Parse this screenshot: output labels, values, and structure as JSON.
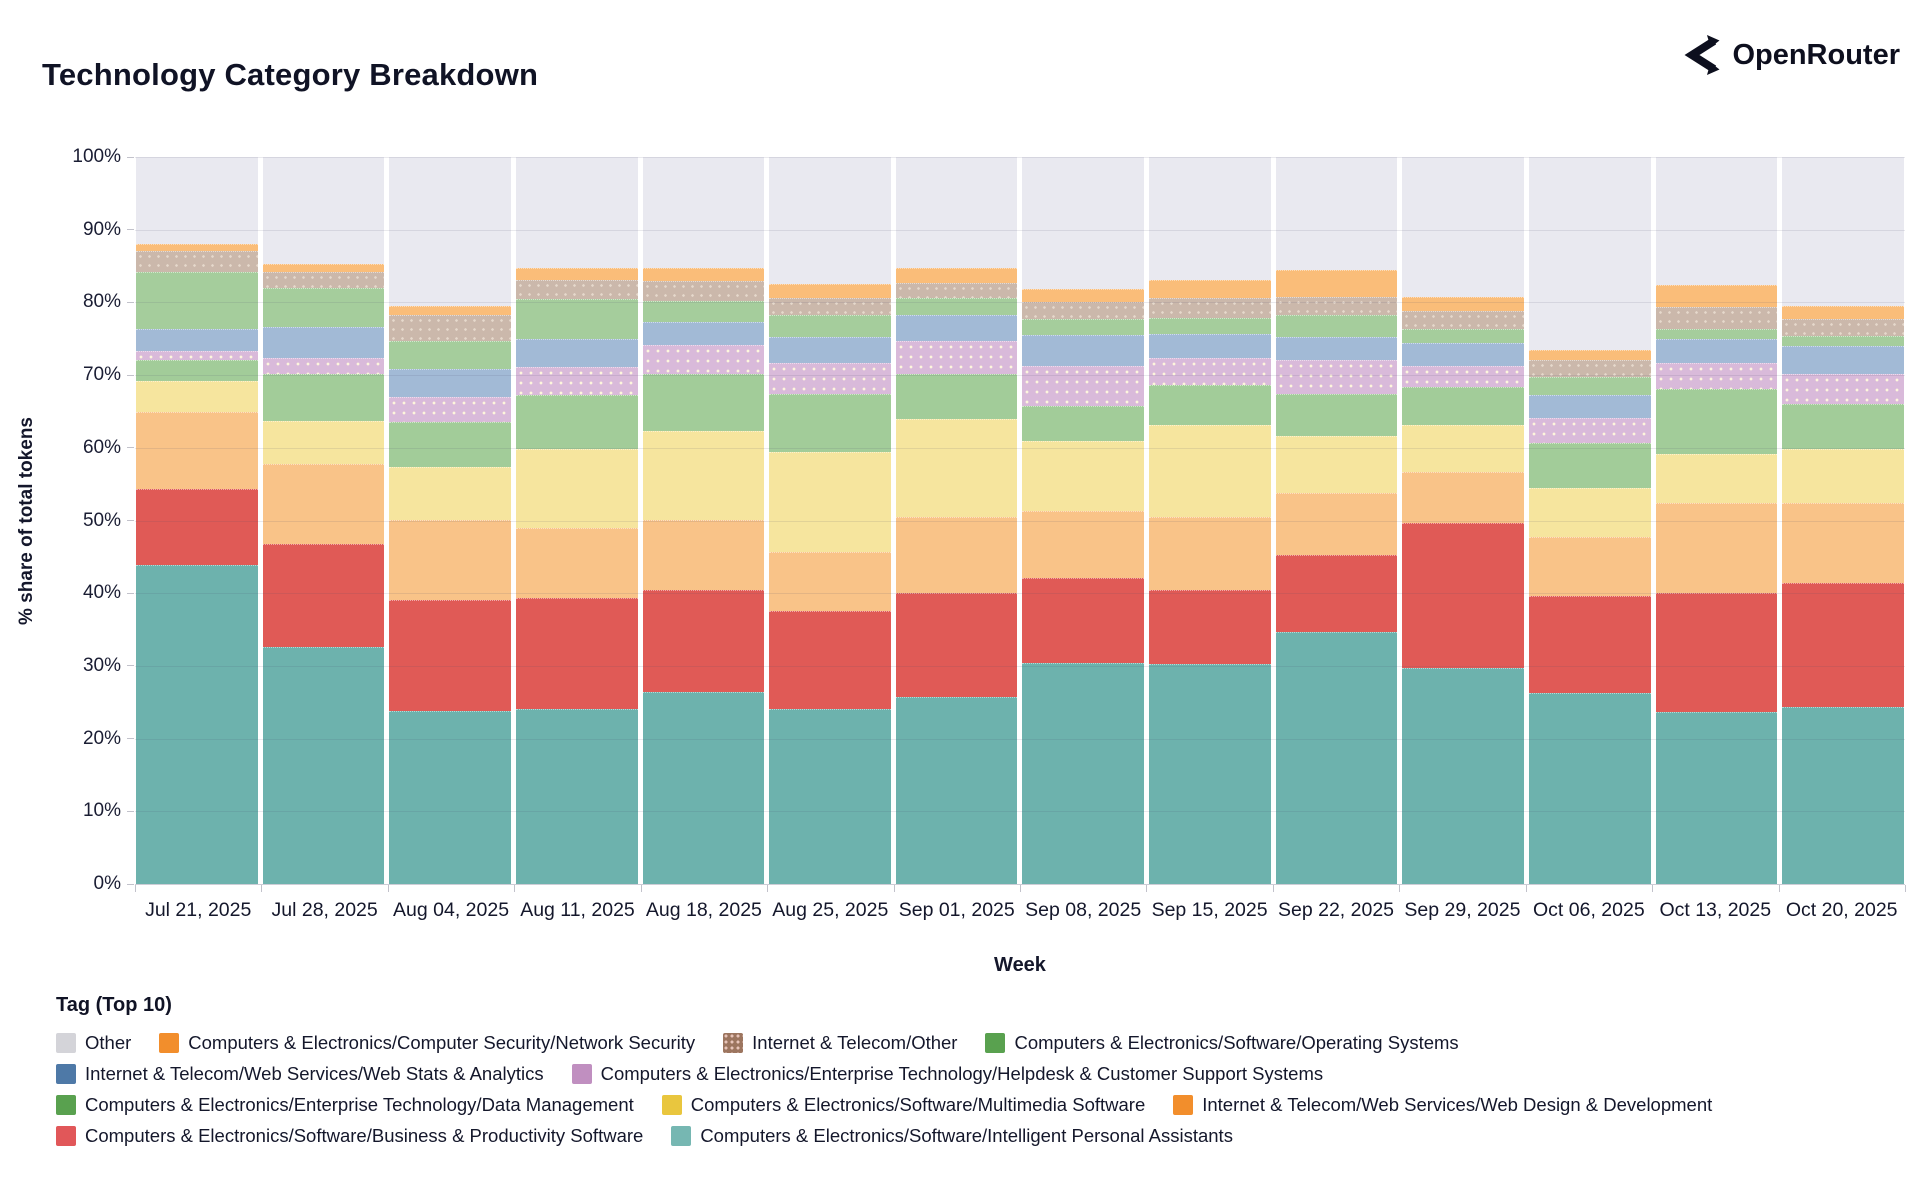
{
  "header": {
    "title": "Technology Category Breakdown",
    "brand": "OpenRouter"
  },
  "chart_data": {
    "type": "bar",
    "stacked": true,
    "stack_unit": "percent_of_total",
    "title": "Technology Category Breakdown",
    "xlabel": "Week",
    "ylabel": "% share of total tokens",
    "ylim": [
      0,
      100
    ],
    "grid": true,
    "legend_title": "Tag (Top 10)",
    "legend_position": "bottom",
    "ytick_labels": [
      "0%",
      "10%",
      "20%",
      "30%",
      "40%",
      "50%",
      "60%",
      "70%",
      "80%",
      "90%",
      "100%"
    ],
    "categories": [
      "Jul 21, 2025",
      "Jul 28, 2025",
      "Aug 04, 2025",
      "Aug 11, 2025",
      "Aug 18, 2025",
      "Aug 25, 2025",
      "Sep 01, 2025",
      "Sep 08, 2025",
      "Sep 15, 2025",
      "Sep 22, 2025",
      "Sep 29, 2025",
      "Oct 06, 2025",
      "Oct 13, 2025",
      "Oct 20, 2025"
    ],
    "series": [
      {
        "key": "ipa",
        "label": "Computers & Electronics/Software/Intelligent Personal Assistants",
        "bar_color": "#6db2ad",
        "legend_color": "#76b7b2",
        "pattern": false,
        "values": [
          43.8,
          32.6,
          23.8,
          24.1,
          26.4,
          24.0,
          25.7,
          30.4,
          30.3,
          34.6,
          29.7,
          26.2,
          23.6,
          24.3
        ]
      },
      {
        "key": "bps",
        "label": "Computers & Electronics/Software/Business & Productivity Software",
        "bar_color": "#e05a56",
        "legend_color": "#e15759",
        "pattern": false,
        "values": [
          10.5,
          14.1,
          15.3,
          15.3,
          14.1,
          13.5,
          14.3,
          11.7,
          10.2,
          10.6,
          19.9,
          13.4,
          16.4,
          17.1
        ]
      },
      {
        "key": "wdd",
        "label": "Internet & Telecom/Web Services/Web Design & Development",
        "bar_color": "#f9c388",
        "legend_color": "#f28e2c",
        "pattern": false,
        "values": [
          10.6,
          11.1,
          11.0,
          9.6,
          9.6,
          8.1,
          10.5,
          9.2,
          10.0,
          8.6,
          7.0,
          8.1,
          12.4,
          11.0
        ]
      },
      {
        "key": "mms",
        "label": "Computers & Electronics/Software/Multimedia Software",
        "bar_color": "#f6e59e",
        "legend_color": "#e9c63e",
        "pattern": false,
        "values": [
          4.3,
          5.9,
          7.2,
          10.8,
          12.2,
          13.8,
          13.4,
          9.6,
          12.6,
          7.8,
          6.5,
          6.8,
          6.8,
          7.5
        ]
      },
      {
        "key": "dm",
        "label": "Computers & Electronics/Enterprise Technology/Data Management",
        "bar_color": "#a2cc99",
        "legend_color": "#59a14f",
        "pattern": false,
        "values": [
          2.8,
          6.4,
          6.3,
          7.4,
          7.9,
          8.0,
          6.3,
          4.9,
          5.5,
          5.8,
          5.3,
          6.1,
          8.9,
          6.1
        ]
      },
      {
        "key": "hd",
        "label": "Computers & Electronics/Enterprise Technology/Helpdesk & Customer Support Systems",
        "bar_color": "#d9bada",
        "legend_color": "#c08fc0",
        "pattern": true,
        "values": [
          1.3,
          2.3,
          3.4,
          3.9,
          4.0,
          4.3,
          4.5,
          5.4,
          3.8,
          4.7,
          2.8,
          3.5,
          3.5,
          4.2
        ]
      },
      {
        "key": "wsa",
        "label": "Internet & Telecom/Web Services/Web Stats & Analytics",
        "bar_color": "#a2bad6",
        "legend_color": "#4e79a7",
        "pattern": false,
        "values": [
          3.0,
          4.2,
          3.9,
          3.8,
          3.1,
          3.5,
          3.5,
          4.3,
          3.2,
          3.1,
          3.2,
          3.1,
          3.4,
          3.8
        ]
      },
      {
        "key": "os",
        "label": "Computers & Electronics/Software/Operating Systems",
        "bar_color": "#a5cd9c",
        "legend_color": "#59a14f",
        "pattern": false,
        "values": [
          7.9,
          5.4,
          3.8,
          5.5,
          2.9,
          3.0,
          2.4,
          2.2,
          2.2,
          3.0,
          1.9,
          2.6,
          1.3,
          1.4
        ]
      },
      {
        "key": "ito",
        "label": "Internet & Telecom/Other",
        "bar_color": "#cbb8ab",
        "legend_color": "#9c755f",
        "pattern": false,
        "pattern_subtle": true,
        "values": [
          2.8,
          2.2,
          3.6,
          2.7,
          2.7,
          2.4,
          2.1,
          2.4,
          2.8,
          2.6,
          2.5,
          2.3,
          3.1,
          2.3
        ]
      },
      {
        "key": "ns",
        "label": "Computers & Electronics/Computer Security/Network Security",
        "bar_color": "#fabd79",
        "legend_color": "#f28e2c",
        "pattern": false,
        "values": [
          1.1,
          1.1,
          1.2,
          1.6,
          1.9,
          1.9,
          2.1,
          1.8,
          2.5,
          3.7,
          2.0,
          1.4,
          3.0,
          1.8
        ]
      },
      {
        "key": "other",
        "label": "Other",
        "bar_color": "#e9e9f0",
        "legend_color": "#d4d4d9",
        "pattern": false,
        "values": [
          11.9,
          14.7,
          20.5,
          15.3,
          15.2,
          17.5,
          15.2,
          18.1,
          16.9,
          15.5,
          19.2,
          26.5,
          17.6,
          20.5
        ]
      }
    ],
    "legend_rows": [
      [
        "other",
        "ns",
        "ito",
        "os"
      ],
      [
        "wsa",
        "hd"
      ],
      [
        "dm",
        "mms",
        "wdd"
      ],
      [
        "bps",
        "ipa"
      ]
    ]
  }
}
